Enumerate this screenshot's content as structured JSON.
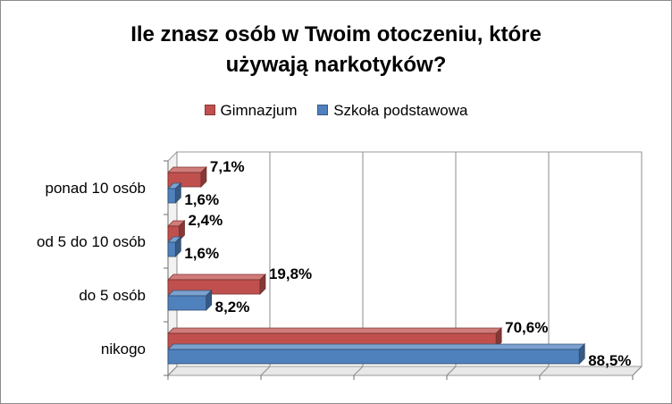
{
  "title_lines": [
    "Ile znasz osób w Twoim otoczeniu, które",
    "używają narkotyków?"
  ],
  "legend": [
    {
      "name": "Gimnazjum",
      "color": "#c0504d"
    },
    {
      "name": "Szkoła podstawowa",
      "color": "#4f81bd"
    }
  ],
  "chart_data": {
    "type": "bar",
    "orientation": "horizontal",
    "style": "3d-clustered",
    "title": "Ile znasz osób w Twoim otoczeniu, które używają narkotyków?",
    "categories": [
      "ponad 10 osób",
      "od 5 do 10 osób",
      "do 5 osób",
      "nikogo"
    ],
    "series": [
      {
        "name": "Gimnazjum",
        "color": "#c0504d",
        "values": [
          7.1,
          2.4,
          19.8,
          70.6
        ],
        "labels": [
          "7,1%",
          "2,4%",
          "19,8%",
          "70,6%"
        ]
      },
      {
        "name": "Szkoła podstawowa",
        "color": "#4f81bd",
        "values": [
          1.6,
          1.6,
          8.2,
          88.5
        ],
        "labels": [
          "1,6%",
          "1,6%",
          "8,2%",
          "88,5%"
        ]
      }
    ],
    "xlim": [
      0,
      100
    ],
    "x_gridlines": [
      0,
      20,
      40,
      60,
      80,
      100
    ],
    "show_x_tick_labels": false,
    "grid": true,
    "legend_position": "top"
  }
}
